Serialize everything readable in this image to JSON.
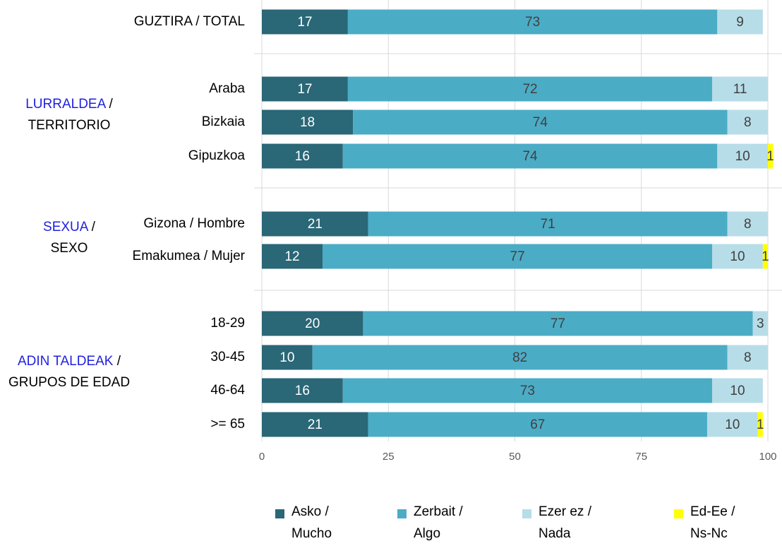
{
  "chart_data": {
    "type": "stacked_bar_horizontal",
    "categories": [
      "GUZTIRA / TOTAL",
      "Araba",
      "Bizkaia",
      "Gipuzkoa",
      "Gizona / Hombre",
      "Emakumea / Mujer",
      "18-29",
      "30-45",
      "46-64",
      ">= 65"
    ],
    "groups": [
      {
        "name": "LURRALDEA",
        "suffix": " /",
        "second": "TERRITORIO"
      },
      {
        "name": "SEXUA",
        "suffix": " /",
        "second": "SEXO"
      },
      {
        "name": "ADIN TALDEAK",
        "suffix": " /",
        "second": "GRUPOS DE EDAD"
      }
    ],
    "series": [
      {
        "name": "Asko / Mucho",
        "color": "#2a6777",
        "label_color": "#ffffff",
        "values": [
          17,
          17,
          18,
          16,
          21,
          12,
          20,
          10,
          16,
          21
        ]
      },
      {
        "name": "Zerbait / Algo",
        "color": "#4bacc6",
        "label_color": "#404040",
        "values": [
          73,
          72,
          74,
          74,
          71,
          77,
          77,
          82,
          73,
          67
        ]
      },
      {
        "name": "Ezer ez / Nada",
        "color": "#b7dde8",
        "label_color": "#404040",
        "values": [
          9,
          11,
          8,
          10,
          8,
          10,
          3,
          8,
          10,
          10
        ]
      },
      {
        "name": "Ed-Ee / Ns-Nc",
        "color": "#ffff00",
        "label_color": "#404040",
        "values": [
          null,
          null,
          null,
          1,
          null,
          1,
          null,
          null,
          null,
          1
        ]
      }
    ],
    "xlim": [
      0,
      100
    ],
    "xticks": [
      0,
      25,
      50,
      75,
      100
    ],
    "grid": true
  }
}
